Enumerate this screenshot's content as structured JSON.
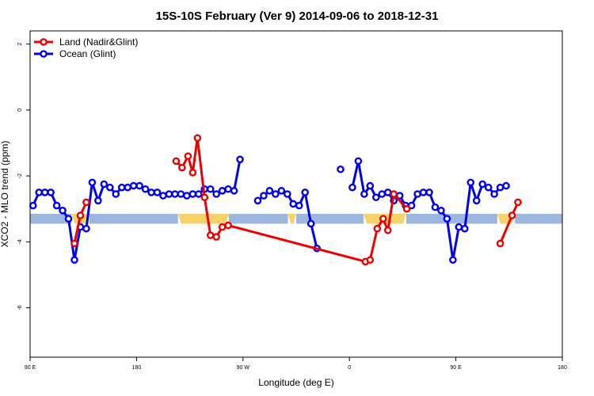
{
  "chart_data": {
    "type": "line",
    "title": "15S-10S February (Ver 9)   2014-09-06 to 2018-12-31",
    "xlabel": "Longitude (deg E)",
    "ylabel": "XCO2 - MLO trend (ppm)",
    "xlim": [
      90,
      540
    ],
    "ylim": [
      -7.5,
      2.4
    ],
    "x_tick_values": [
      90,
      180,
      270,
      360,
      450,
      540
    ],
    "x_tick_labels": [
      "90 E",
      "180",
      "90 W",
      "0",
      "90 E",
      "180"
    ],
    "y_tick_values": [
      2,
      0,
      -2,
      -4,
      -6
    ],
    "y_tick_labels": [
      "2",
      "0",
      "-2",
      "-4",
      "-6"
    ],
    "grid": false,
    "legend_position": "top-left",
    "colors": {
      "land": "#ee0000",
      "ocean": "#0000ee",
      "band_ocean": "#9bb7dd",
      "band_land": "#f7d26a"
    },
    "series": [
      {
        "name": "Land (Nadir&Glint)",
        "color": "#ee0000",
        "points": [
          [
            127.5,
            -4.05
          ],
          [
            132.5,
            -3.2
          ],
          [
            137.5,
            -2.8
          ],
          [
            213.5,
            -1.55
          ],
          [
            218.5,
            -1.75
          ],
          [
            223.5,
            -1.4
          ],
          [
            227.5,
            -1.9
          ],
          [
            231.5,
            -0.85
          ],
          [
            237.5,
            -2.65
          ],
          [
            242.5,
            -3.8
          ],
          [
            247.5,
            -3.85
          ],
          [
            252.5,
            -3.55
          ],
          [
            257.5,
            -3.5
          ],
          [
            373.5,
            -4.6
          ],
          [
            377.5,
            -4.55
          ],
          [
            383.5,
            -3.6
          ],
          [
            388.5,
            -3.3
          ],
          [
            392.5,
            -3.65
          ],
          [
            397.5,
            -2.55
          ],
          [
            408.5,
            -3.0
          ],
          [
            487.5,
            -4.05
          ],
          [
            497.5,
            -3.2
          ],
          [
            502.5,
            -2.8
          ]
        ],
        "segment_breaks_after_index": [
          2,
          13,
          19
        ]
      },
      {
        "name": "Ocean (Glint)",
        "color": "#0000ee",
        "points": [
          [
            92.5,
            -2.9
          ],
          [
            97.5,
            -2.5
          ],
          [
            102.5,
            -2.5
          ],
          [
            107.5,
            -2.5
          ],
          [
            112.5,
            -2.9
          ],
          [
            117.5,
            -3.05
          ],
          [
            122.5,
            -3.3
          ],
          [
            127.5,
            -4.55
          ],
          [
            132.5,
            -3.55
          ],
          [
            137.5,
            -3.6
          ],
          [
            142.5,
            -2.2
          ],
          [
            147.5,
            -2.75
          ],
          [
            152.5,
            -2.25
          ],
          [
            157.5,
            -2.35
          ],
          [
            162.5,
            -2.55
          ],
          [
            167.5,
            -2.35
          ],
          [
            172.5,
            -2.35
          ],
          [
            177.5,
            -2.3
          ],
          [
            182.5,
            -2.3
          ],
          [
            187.5,
            -2.4
          ],
          [
            192.5,
            -2.5
          ],
          [
            197.5,
            -2.5
          ],
          [
            202.5,
            -2.6
          ],
          [
            207.5,
            -2.55
          ],
          [
            212.5,
            -2.55
          ],
          [
            217.5,
            -2.55
          ],
          [
            222.5,
            -2.6
          ],
          [
            227.5,
            -2.55
          ],
          [
            232.5,
            -2.55
          ],
          [
            237.5,
            -2.4
          ],
          [
            242.5,
            -2.4
          ],
          [
            247.5,
            -2.55
          ],
          [
            252.5,
            -2.45
          ],
          [
            257.5,
            -2.4
          ],
          [
            262.5,
            -2.45
          ],
          [
            267.5,
            -1.5
          ],
          [
            282.5,
            -2.75
          ],
          [
            287.5,
            -2.6
          ],
          [
            292.5,
            -2.45
          ],
          [
            297.5,
            -2.55
          ],
          [
            302.5,
            -2.45
          ],
          [
            307.5,
            -2.55
          ],
          [
            312.5,
            -2.85
          ],
          [
            317.5,
            -2.9
          ],
          [
            322.5,
            -2.5
          ],
          [
            327.5,
            -3.45
          ],
          [
            332.5,
            -4.2
          ],
          [
            352.5,
            -1.8
          ],
          [
            362.5,
            -2.35
          ],
          [
            367.5,
            -1.55
          ],
          [
            372.5,
            -2.55
          ],
          [
            377.5,
            -2.3
          ],
          [
            382.5,
            -2.65
          ],
          [
            387.5,
            -2.55
          ],
          [
            392.5,
            -2.5
          ],
          [
            397.5,
            -2.75
          ],
          [
            402.5,
            -2.6
          ],
          [
            407.5,
            -2.9
          ],
          [
            412.5,
            -2.9
          ],
          [
            417.5,
            -2.55
          ],
          [
            422.5,
            -2.5
          ],
          [
            427.5,
            -2.5
          ],
          [
            432.5,
            -2.95
          ],
          [
            437.5,
            -3.05
          ],
          [
            442.5,
            -3.3
          ],
          [
            447.5,
            -4.55
          ],
          [
            452.5,
            -3.55
          ],
          [
            457.5,
            -3.6
          ],
          [
            462.5,
            -2.2
          ],
          [
            467.5,
            -2.75
          ],
          [
            472.5,
            -2.25
          ],
          [
            477.5,
            -2.35
          ],
          [
            482.5,
            -2.55
          ],
          [
            487.5,
            -2.35
          ],
          [
            492.5,
            -2.3
          ]
        ],
        "segment_breaks_after_index": [
          35,
          46,
          47
        ]
      }
    ],
    "surface_band": {
      "y_range": [
        -3.45,
        -3.15
      ],
      "segments": [
        {
          "type": "ocean",
          "x0": 90,
          "x1": 125
        },
        {
          "type": "land",
          "x0": 125,
          "x1": 140
        },
        {
          "type": "ocean",
          "x0": 140,
          "x1": 215
        },
        {
          "type": "land",
          "x0": 215,
          "x1": 258
        },
        {
          "type": "ocean",
          "x0": 258,
          "x1": 308
        },
        {
          "type": "land",
          "x0": 308,
          "x1": 315
        },
        {
          "type": "ocean",
          "x0": 315,
          "x1": 372
        },
        {
          "type": "land",
          "x0": 372,
          "x1": 408
        },
        {
          "type": "ocean",
          "x0": 408,
          "x1": 485
        },
        {
          "type": "land",
          "x0": 485,
          "x1": 500
        },
        {
          "type": "ocean",
          "x0": 500,
          "x1": 540
        }
      ]
    }
  }
}
